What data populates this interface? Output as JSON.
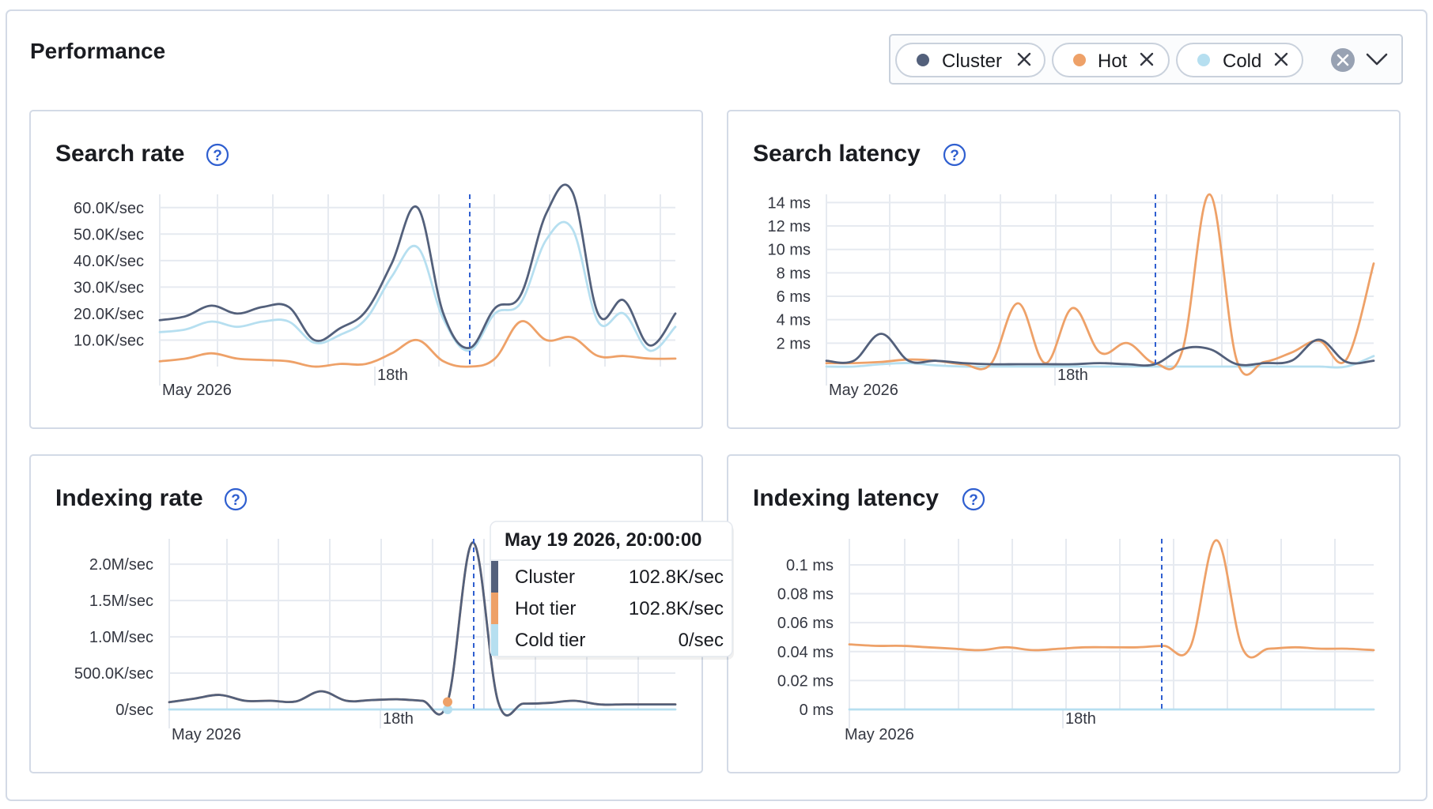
{
  "header": {
    "title": "Performance"
  },
  "filter": {
    "chips": [
      {
        "label": "Cluster",
        "dot": "#53607b",
        "remove_icon": "close-icon"
      },
      {
        "label": "Hot",
        "dot": "#eea168",
        "remove_icon": "close-icon"
      },
      {
        "label": "Cold",
        "dot": "#b6dff0",
        "remove_icon": "close-icon"
      }
    ],
    "clear_icon": "clear-circle-icon",
    "toggle_icon": "chevron-down-icon"
  },
  "colors": {
    "cluster": "#53607b",
    "hot": "#eea168",
    "cold": "#b6dff0",
    "marker": "#2f5fd0",
    "grid": "#e6eaf0"
  },
  "help_icon": "question-circle-icon",
  "tooltip": {
    "title": "May 19 2026, 20:00:00",
    "rows": [
      {
        "label": "Cluster",
        "value": "102.8K/sec"
      },
      {
        "label": "Hot tier",
        "value": "102.8K/sec"
      },
      {
        "label": "Cold tier",
        "value": "0/sec"
      }
    ]
  },
  "chart_data": [
    {
      "type": "line",
      "title": "Search rate",
      "x_labels": [
        "May 2026",
        "18th"
      ],
      "y_ticks": [
        "10.0K/sec",
        "20.0K/sec",
        "30.0K/sec",
        "40.0K/sec",
        "50.0K/sec",
        "60.0K/sec"
      ],
      "ylim": [
        0,
        65000
      ],
      "grid": true,
      "series": [
        {
          "name": "Cluster",
          "values": [
            17500,
            19000,
            23000,
            20000,
            22500,
            22500,
            10000,
            14500,
            21000,
            39000,
            60000,
            20000,
            7000,
            22000,
            27000,
            58000,
            66000,
            20000,
            25000,
            8000,
            20000
          ]
        },
        {
          "name": "Hot",
          "values": [
            2000,
            3000,
            5000,
            3000,
            2500,
            2000,
            0,
            1000,
            1000,
            5000,
            10000,
            2000,
            0,
            3000,
            17000,
            10000,
            11000,
            4000,
            4000,
            3000,
            3000
          ]
        },
        {
          "name": "Cold",
          "values": [
            13000,
            14000,
            17000,
            15000,
            17000,
            17000,
            9000,
            12000,
            18000,
            34000,
            45000,
            18000,
            6000,
            20000,
            24000,
            48000,
            52000,
            17000,
            20000,
            6000,
            15000
          ]
        }
      ]
    },
    {
      "type": "line",
      "title": "Search latency",
      "x_labels": [
        "May 2026",
        "18th"
      ],
      "y_ticks": [
        "2 ms",
        "4 ms",
        "6 ms",
        "8 ms",
        "10 ms",
        "12 ms",
        "14 ms"
      ],
      "ylim": [
        0,
        14.7
      ],
      "grid": true,
      "series": [
        {
          "name": "Cluster",
          "values": [
            0.5,
            0.5,
            2.8,
            0.5,
            0.5,
            0.3,
            0.2,
            0.2,
            0.2,
            0.2,
            0.3,
            0.2,
            0.2,
            1.5,
            1.5,
            0.2,
            0.3,
            0.5,
            2.3,
            0.4,
            0.5
          ]
        },
        {
          "name": "Hot",
          "values": [
            0.3,
            0.3,
            0.4,
            0.6,
            0.5,
            0.2,
            0.2,
            5.4,
            0.3,
            5.0,
            1.2,
            2.0,
            0.3,
            1.3,
            14.7,
            0.5,
            0.4,
            1.2,
            2.2,
            0.6,
            8.8
          ]
        },
        {
          "name": "Cold",
          "values": [
            0,
            0,
            0.2,
            0.3,
            0.1,
            0,
            0,
            0,
            0,
            0,
            0,
            0,
            0,
            0,
            0,
            0,
            0,
            0,
            0,
            0,
            0.9
          ]
        }
      ]
    },
    {
      "type": "line",
      "title": "Indexing rate",
      "x_labels": [
        "May 2026",
        "18th"
      ],
      "y_ticks": [
        "0/sec",
        "500.0K/sec",
        "1.0M/sec",
        "1.5M/sec",
        "2.0M/sec"
      ],
      "ylim": [
        0,
        2350000
      ],
      "grid": true,
      "series": [
        {
          "name": "Cluster",
          "values": [
            100000,
            150000,
            200000,
            120000,
            120000,
            110000,
            250000,
            120000,
            130000,
            140000,
            120000,
            102800,
            2300000,
            100000,
            80000,
            90000,
            120000,
            70000,
            70000,
            70000,
            70000
          ]
        },
        {
          "name": "Hot",
          "values": [
            100000,
            150000,
            200000,
            120000,
            120000,
            110000,
            250000,
            120000,
            130000,
            140000,
            120000,
            102800,
            2300000,
            100000,
            80000,
            90000,
            120000,
            70000,
            70000,
            70000,
            70000
          ]
        },
        {
          "name": "Cold",
          "values": [
            0,
            0,
            0,
            0,
            0,
            0,
            0,
            0,
            0,
            0,
            0,
            0,
            0,
            0,
            0,
            0,
            0,
            0,
            0,
            0,
            0
          ]
        }
      ]
    },
    {
      "type": "line",
      "title": "Indexing latency",
      "x_labels": [
        "May 2026",
        "18th"
      ],
      "y_ticks": [
        "0 ms",
        "0.02 ms",
        "0.04 ms",
        "0.06 ms",
        "0.08 ms",
        "0.1 ms"
      ],
      "ylim": [
        0,
        0.118
      ],
      "grid": true,
      "series": [
        {
          "name": "Hot",
          "values": [
            0.045,
            0.044,
            0.044,
            0.043,
            0.042,
            0.041,
            0.043,
            0.041,
            0.042,
            0.043,
            0.043,
            0.043,
            0.044,
            0.043,
            0.117,
            0.042,
            0.042,
            0.043,
            0.042,
            0.042,
            0.041
          ]
        },
        {
          "name": "Cold",
          "values": [
            0,
            0,
            0,
            0,
            0,
            0,
            0,
            0,
            0,
            0,
            0,
            0,
            0,
            0,
            0,
            0,
            0,
            0,
            0,
            0,
            0
          ]
        }
      ]
    }
  ]
}
